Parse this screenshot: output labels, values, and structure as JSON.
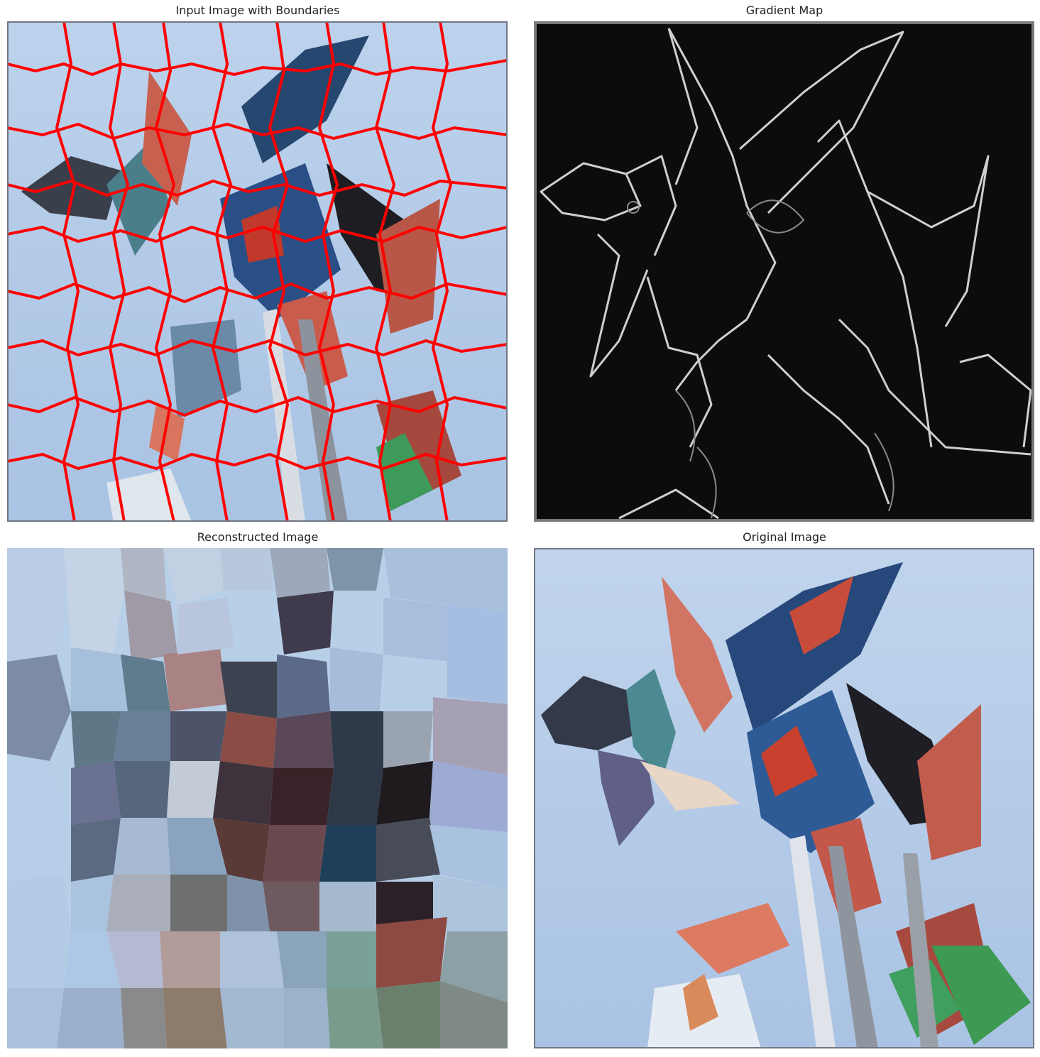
{
  "panels": [
    {
      "title": "Input Image with Boundaries"
    },
    {
      "title": "Gradient Map"
    },
    {
      "title": "Reconstructed Image"
    },
    {
      "title": "Original Image"
    }
  ],
  "colors": {
    "boundary": "#ff0000",
    "sky": "#b9cfe8",
    "gradient_bg": "#0c0c0c",
    "gradient_edge": "#d0d0d0",
    "pinwheel_red": "#d8644c",
    "pinwheel_blue": "#1f4f8c",
    "pinwheel_dark": "#1a1a22"
  }
}
